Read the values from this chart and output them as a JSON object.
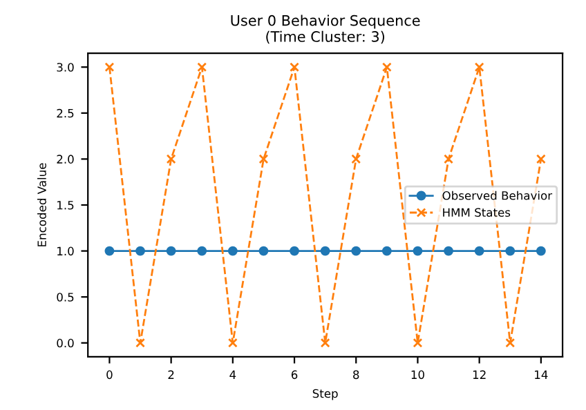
{
  "chart_data": {
    "type": "line",
    "title": "User 0 Behavior Sequence\n(Time Cluster: 3)",
    "xlabel": "Step",
    "ylabel": "Encoded Value",
    "x": [
      0,
      1,
      2,
      3,
      4,
      5,
      6,
      7,
      8,
      9,
      10,
      11,
      12,
      13,
      14
    ],
    "series": [
      {
        "name": "Observed Behavior",
        "color": "#1f77b4",
        "marker": "circle",
        "line_style": "solid",
        "values": [
          1,
          1,
          1,
          1,
          1,
          1,
          1,
          1,
          1,
          1,
          1,
          1,
          1,
          1,
          1
        ]
      },
      {
        "name": "HMM States",
        "color": "#ff7f0e",
        "marker": "cross",
        "line_style": "dashed",
        "values": [
          3,
          0,
          2,
          3,
          0,
          2,
          3,
          0,
          2,
          3,
          0,
          2,
          3,
          0,
          2
        ]
      }
    ],
    "xlim": [
      -0.7,
      14.7
    ],
    "xticks": [
      0,
      2,
      4,
      6,
      8,
      10,
      12,
      14
    ],
    "ylim": [
      -0.15,
      3.15
    ],
    "yticks": [
      {
        "value": 0,
        "label": "0.0"
      },
      {
        "value": 0.5,
        "label": "0.5"
      },
      {
        "value": 1,
        "label": "1.0"
      },
      {
        "value": 1.5,
        "label": "1.5"
      },
      {
        "value": 2,
        "label": "2.0"
      },
      {
        "value": 2.5,
        "label": "2.5"
      },
      {
        "value": 3,
        "label": "3.0"
      }
    ],
    "grid": false,
    "legend": "right"
  }
}
